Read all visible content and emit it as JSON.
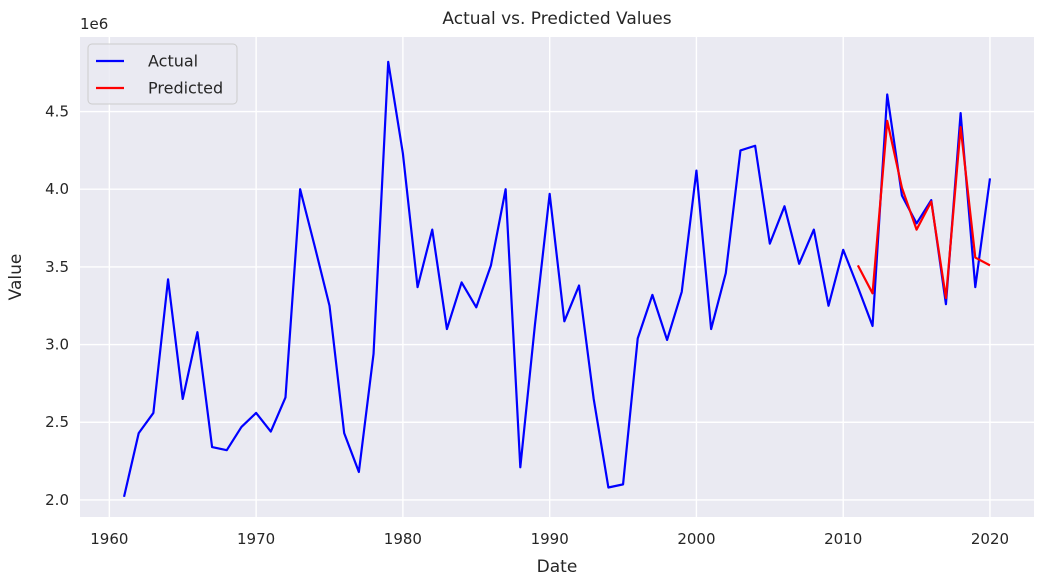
{
  "chart_data": {
    "type": "line",
    "title": "Actual vs. Predicted Values",
    "xlabel": "Date",
    "ylabel": "Value",
    "y_offset_label": "1e6",
    "xlim": [
      1958,
      2023
    ],
    "ylim": [
      1890000,
      4980000
    ],
    "x_ticks": [
      1960,
      1970,
      1980,
      1990,
      2000,
      2010,
      2020
    ],
    "y_ticks": [
      2.0,
      2.5,
      3.0,
      3.5,
      4.0,
      4.5
    ],
    "grid": true,
    "legend_position": "top-left",
    "series": [
      {
        "name": "Actual",
        "color": "#0000ff",
        "x": [
          1961,
          1962,
          1963,
          1964,
          1965,
          1966,
          1967,
          1968,
          1969,
          1970,
          1971,
          1972,
          1973,
          1974,
          1975,
          1976,
          1977,
          1978,
          1979,
          1980,
          1981,
          1982,
          1983,
          1984,
          1985,
          1986,
          1987,
          1988,
          1989,
          1990,
          1991,
          1992,
          1993,
          1994,
          1995,
          1996,
          1997,
          1998,
          1999,
          2000,
          2001,
          2002,
          2003,
          2004,
          2005,
          2006,
          2007,
          2008,
          2009,
          2010,
          2011,
          2012,
          2013,
          2014,
          2015,
          2016,
          2017,
          2018,
          2019,
          2020
        ],
        "y": [
          2020000,
          2430000,
          2560000,
          3420000,
          2650000,
          3080000,
          2340000,
          2320000,
          2470000,
          2560000,
          2440000,
          2660000,
          4000000,
          3630000,
          3250000,
          2430000,
          2180000,
          2940000,
          4820000,
          4230000,
          3370000,
          3740000,
          3100000,
          3400000,
          3240000,
          3510000,
          4000000,
          2210000,
          3130000,
          3970000,
          3150000,
          3380000,
          2650000,
          2080000,
          2100000,
          3040000,
          3320000,
          3030000,
          3340000,
          4120000,
          3100000,
          3460000,
          4250000,
          4280000,
          3650000,
          3890000,
          3520000,
          3740000,
          3250000,
          3610000,
          3370000,
          3120000,
          4610000,
          3960000,
          3780000,
          3930000,
          3260000,
          4490000,
          3370000,
          4070000
        ]
      },
      {
        "name": "Predicted",
        "color": "#ff0000",
        "x": [
          2011,
          2012,
          2013,
          2014,
          2015,
          2016,
          2017,
          2018,
          2019,
          2020
        ],
        "y": [
          3510000,
          3330000,
          4440000,
          4010000,
          3740000,
          3920000,
          3300000,
          4400000,
          3560000,
          3510000
        ]
      }
    ]
  }
}
